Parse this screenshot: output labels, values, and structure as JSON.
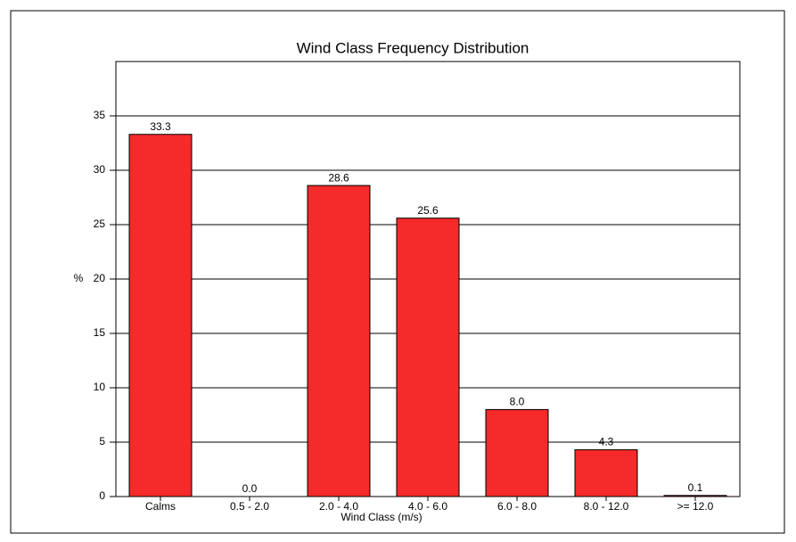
{
  "chart_data": {
    "type": "bar",
    "title": "Wind Class Frequency Distribution",
    "x_label": "Wind Class (m/s)",
    "y_label": "%",
    "categories": [
      "Calms",
      "0.5 - 2.0",
      "2.0 - 4.0",
      "4.0 - 6.0",
      "6.0 - 8.0",
      "8.0 - 12.0",
      ">= 12.0"
    ],
    "values": [
      33.3,
      0.0,
      28.6,
      25.6,
      8.0,
      4.3,
      0.1
    ],
    "value_labels": [
      "33.3",
      "0.0",
      "28.6",
      "25.6",
      "8.0",
      "4.3",
      "0.1"
    ],
    "color": "#f52a2a",
    "ylim": [
      0,
      40
    ],
    "yticks": [
      0,
      5,
      10,
      15,
      20,
      25,
      30,
      35
    ],
    "grid": true
  }
}
